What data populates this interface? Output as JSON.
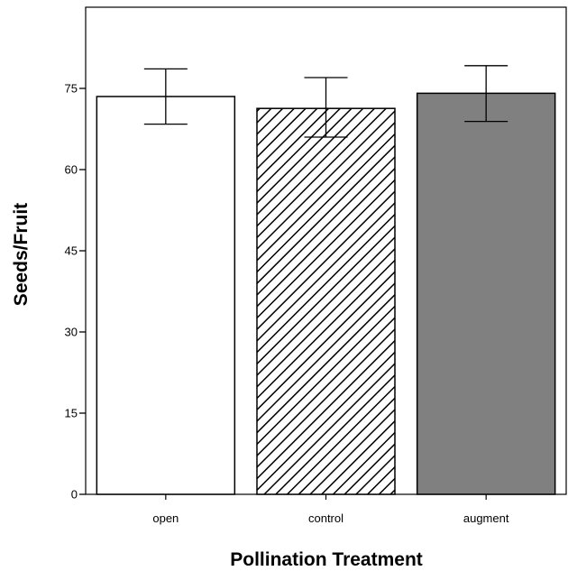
{
  "chart_data": {
    "type": "bar",
    "categories": [
      "open",
      "control",
      "augment"
    ],
    "values": [
      73.5,
      71.3,
      74.1
    ],
    "error_bars": {
      "upper": [
        78.6,
        77.0,
        79.2
      ],
      "lower": [
        68.4,
        66.0,
        68.9
      ]
    },
    "bar_styles": [
      {
        "fill": "#ffffff",
        "pattern": "none"
      },
      {
        "fill": "#ffffff",
        "pattern": "diagonal-hatch"
      },
      {
        "fill": "#808080",
        "pattern": "none"
      }
    ],
    "xlabel": "Pollination Treatment",
    "ylabel": "Seeds/Fruit",
    "ylim": [
      0,
      90
    ],
    "yticks": [
      0,
      15,
      30,
      45,
      60,
      75
    ],
    "ytick_labels": [
      "0",
      "15",
      "30",
      "45",
      "60",
      "75"
    ],
    "grid": false
  }
}
